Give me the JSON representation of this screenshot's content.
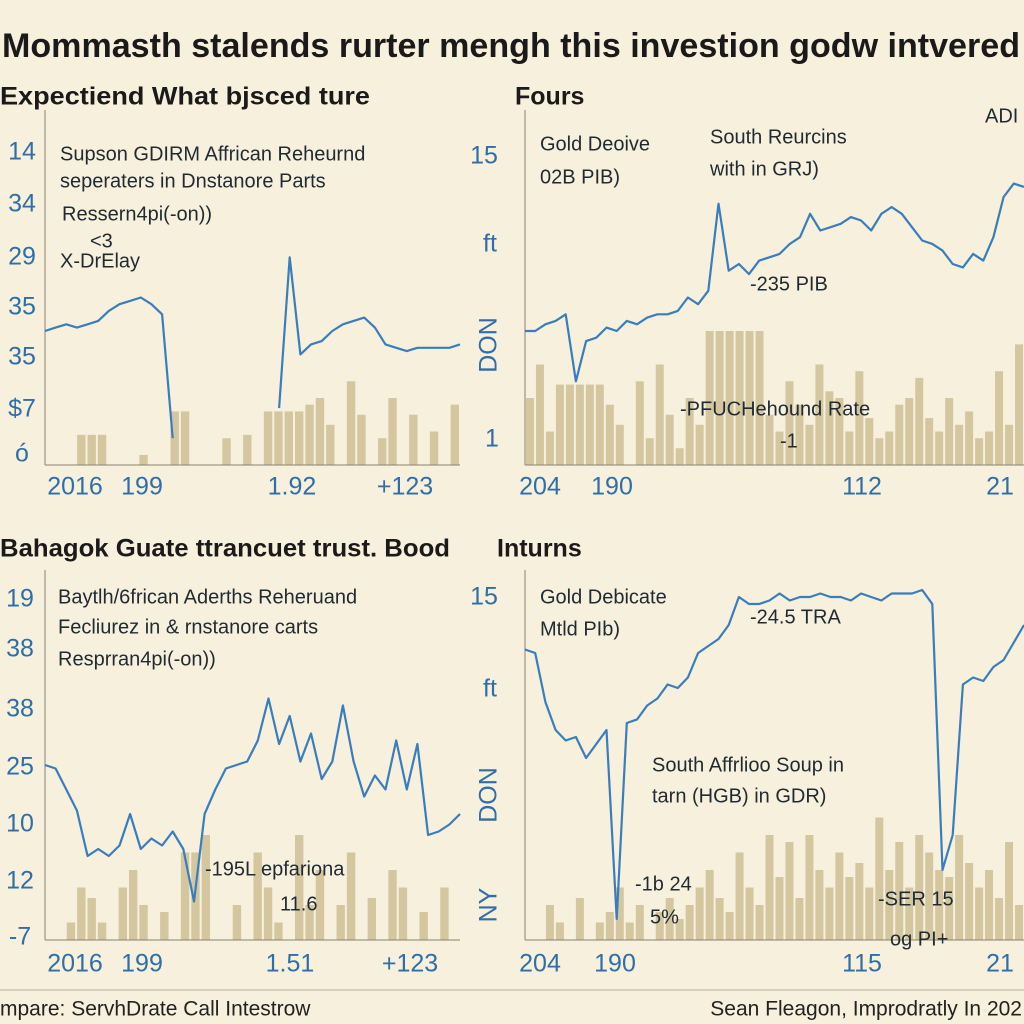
{
  "title": "Mommasth stalends rurter mengh this investion godw intvered",
  "panels": [
    {
      "title": "Expectiend What bjsced ture",
      "notes": [
        "Supson GDIRM Affrican Reheurnd",
        "seperaters in Dnstanore Parts",
        "Ressern4pi(-on))",
        "<3",
        "X-DrElay"
      ],
      "y_labels": [
        "14",
        "34",
        "29",
        "35",
        "35",
        "$7",
        "ó"
      ],
      "x_labels": [
        "2016",
        "199",
        "1.92",
        "+123"
      ],
      "ylim": [
        0,
        100
      ],
      "line_color": "#3a7dbd",
      "bar_color": "#c8b98c",
      "line": [
        40,
        41,
        42,
        41,
        42,
        43,
        46,
        48,
        49,
        50,
        48,
        45,
        8,
        null,
        null,
        null,
        null,
        null,
        null,
        null,
        null,
        null,
        17,
        62,
        33,
        36,
        37,
        40,
        42,
        43,
        44,
        41,
        36,
        35,
        34,
        35,
        35,
        35,
        35,
        36
      ],
      "bars": [
        0,
        0,
        0,
        9,
        9,
        9,
        0,
        0,
        0,
        3,
        0,
        0,
        16,
        16,
        0,
        0,
        0,
        8,
        0,
        9,
        0,
        16,
        16,
        16,
        16,
        18,
        20,
        12,
        0,
        25,
        15,
        0,
        8,
        20,
        0,
        15,
        0,
        10,
        0,
        18
      ]
    },
    {
      "title": "Fours",
      "notes": [
        "Gold Deoive",
        "02B PIB)",
        "South Reurcins",
        "with in GRJ)",
        "ADI",
        "-235 PIB",
        "-PFUCHehound Rate",
        "-1"
      ],
      "y_labels": [
        "15",
        "ft",
        "DON",
        "1"
      ],
      "x_labels": [
        "204",
        "190",
        "112",
        "21"
      ],
      "ylim": [
        0,
        100
      ],
      "line_color": "#3a7dbd",
      "bar_color": "#c8b98c",
      "line": [
        40,
        40,
        42,
        43,
        45,
        25,
        37,
        38,
        41,
        40,
        43,
        42,
        44,
        45,
        45,
        46,
        50,
        48,
        52,
        78,
        58,
        60,
        57,
        61,
        62,
        63,
        66,
        68,
        75,
        70,
        71,
        72,
        74,
        73,
        70,
        75,
        77,
        75,
        71,
        67,
        66,
        64,
        60,
        59,
        63,
        61,
        68,
        80,
        84,
        83
      ],
      "bars": [
        20,
        30,
        10,
        24,
        24,
        24,
        24,
        24,
        18,
        12,
        0,
        25,
        8,
        30,
        15,
        5,
        20,
        12,
        40,
        40,
        40,
        40,
        40,
        40,
        15,
        10,
        25,
        18,
        12,
        30,
        22,
        20,
        10,
        28,
        14,
        8,
        10,
        18,
        20,
        26,
        14,
        10,
        20,
        12,
        16,
        8,
        10,
        28,
        12,
        36
      ]
    },
    {
      "title": "Bahagok Guate ttrancuet trust. Bood",
      "notes": [
        "Baytlh/6frican Aderths Reheruand",
        "Fecliurez in & rnstanore carts",
        "Resprran4pi(-on))",
        "-195L epfariona",
        "11.6"
      ],
      "y_labels": [
        "19",
        "38",
        "38",
        "25",
        "10",
        "12",
        "-7"
      ],
      "x_labels": [
        "2016",
        "199",
        "1.51",
        "+123"
      ],
      "ylim": [
        0,
        100
      ],
      "line_color": "#3a7dbd",
      "bar_color": "#c8b98c",
      "line": [
        50,
        49,
        43,
        37,
        24,
        26,
        24,
        27,
        36,
        26,
        29,
        27,
        31,
        26,
        11,
        36,
        43,
        49,
        50,
        51,
        57,
        69,
        56,
        64,
        51,
        59,
        46,
        51,
        67,
        51,
        41,
        47,
        43,
        57,
        43,
        56,
        30,
        31,
        33,
        36
      ],
      "bars": [
        0,
        0,
        5,
        15,
        12,
        5,
        0,
        15,
        20,
        10,
        0,
        8,
        0,
        25,
        25,
        30,
        0,
        0,
        10,
        0,
        25,
        15,
        5,
        0,
        30,
        10,
        20,
        0,
        10,
        25,
        0,
        12,
        0,
        20,
        15,
        0,
        8,
        0,
        15,
        0
      ]
    },
    {
      "title": "Inturns",
      "notes": [
        "Gold Debicate",
        "Mtld PIb)",
        "-24.5 TRA",
        "South Affrlioo Soup in",
        "tarn (HGB) in GDR)",
        "-1b 24",
        "5%",
        "-SER 15",
        "og PI+"
      ],
      "y_labels": [
        "15",
        "ft",
        "DON",
        "NY"
      ],
      "x_labels": [
        "204",
        "190",
        "115",
        "21"
      ],
      "ylim": [
        0,
        100
      ],
      "line_color": "#3a7dbd",
      "bar_color": "#c8b98c",
      "line": [
        83,
        82,
        68,
        60,
        57,
        58,
        52,
        56,
        60,
        6,
        62,
        63,
        67,
        69,
        73,
        72,
        75,
        82,
        84,
        86,
        90,
        98,
        96,
        96,
        97,
        99,
        97,
        98,
        98,
        99,
        98,
        98,
        97,
        99,
        98,
        97,
        99,
        99,
        99,
        100,
        96,
        20,
        30,
        73,
        75,
        74,
        78,
        80,
        85,
        90
      ],
      "bars": [
        0,
        0,
        10,
        5,
        0,
        12,
        0,
        5,
        8,
        15,
        5,
        10,
        0,
        8,
        12,
        6,
        10,
        15,
        20,
        12,
        8,
        25,
        15,
        10,
        30,
        18,
        28,
        12,
        30,
        20,
        15,
        25,
        18,
        22,
        15,
        35,
        20,
        28,
        15,
        30,
        25,
        20,
        18,
        30,
        22,
        15,
        20,
        12,
        28,
        10
      ]
    }
  ],
  "footer": {
    "left": "mpare: ServhDrate Call Intestrow",
    "right": "Sean Fleagon, Improdratly In 202"
  }
}
